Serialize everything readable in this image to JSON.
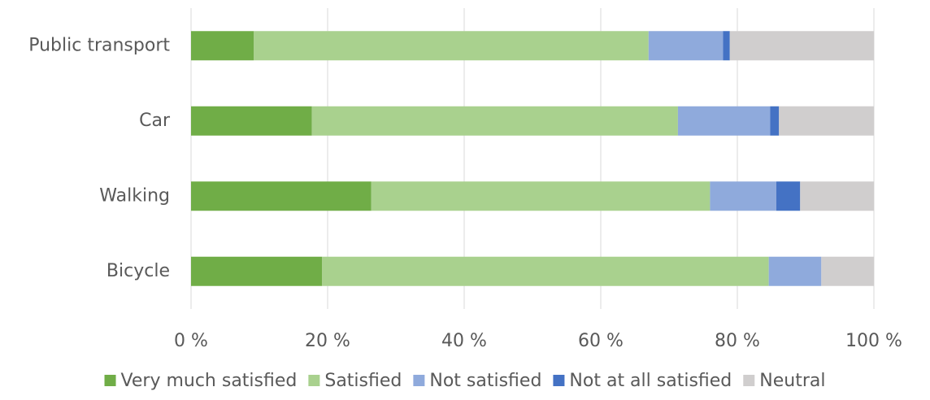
{
  "chart_data": {
    "type": "stacked-bar-horizontal",
    "categories": [
      "Public transport",
      "Car",
      "Walking",
      "Bicycle"
    ],
    "series": [
      {
        "name": "Very much satisfied",
        "color": "#70ad47",
        "values": [
          9.2,
          17.7,
          26.4,
          19.2
        ]
      },
      {
        "name": "Satisfied",
        "color": "#a9d18e",
        "values": [
          57.8,
          53.6,
          49.6,
          65.4
        ]
      },
      {
        "name": "Not satisfied",
        "color": "#8faadc",
        "values": [
          10.9,
          13.5,
          9.7,
          7.7
        ]
      },
      {
        "name": "Not at all satisfied",
        "color": "#4472c4",
        "values": [
          1.0,
          1.3,
          3.5,
          0
        ]
      },
      {
        "name": "Neutral",
        "color": "#d0cece",
        "values": [
          21.1,
          13.9,
          10.8,
          7.7
        ]
      }
    ],
    "xlim": [
      0,
      100
    ],
    "xticks": [
      {
        "value": 0,
        "label": "0 %"
      },
      {
        "value": 20,
        "label": "20 %"
      },
      {
        "value": 40,
        "label": "40 %"
      },
      {
        "value": 60,
        "label": "60 %"
      },
      {
        "value": 80,
        "label": "80 %"
      },
      {
        "value": 100,
        "label": "100 %"
      }
    ],
    "grid": true,
    "legend": "bottom"
  }
}
